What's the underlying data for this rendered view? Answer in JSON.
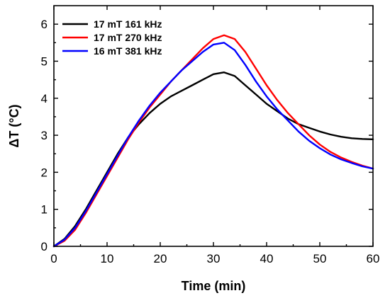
{
  "chart_data": {
    "type": "line",
    "xlabel": "Time (min)",
    "ylabel": "ΔT (°C)",
    "xlim": [
      0,
      60
    ],
    "ylim": [
      0,
      6.5
    ],
    "xticks": [
      0,
      10,
      20,
      30,
      40,
      50,
      60
    ],
    "yticks": [
      0,
      1,
      2,
      3,
      4,
      5,
      6
    ],
    "grid": false,
    "legend_position": "top-left",
    "series": [
      {
        "name": "17 mT 161 kHz",
        "color": "#000000",
        "x": [
          0,
          2,
          4,
          6,
          8,
          10,
          12,
          14,
          16,
          18,
          20,
          22,
          24,
          26,
          28,
          30,
          32,
          34,
          36,
          38,
          40,
          42,
          44,
          46,
          48,
          50,
          52,
          54,
          56,
          58,
          60
        ],
        "y": [
          0,
          0.2,
          0.55,
          1.0,
          1.5,
          2.0,
          2.5,
          2.95,
          3.3,
          3.6,
          3.85,
          4.05,
          4.2,
          4.35,
          4.5,
          4.65,
          4.7,
          4.6,
          4.35,
          4.1,
          3.85,
          3.65,
          3.45,
          3.3,
          3.2,
          3.1,
          3.02,
          2.96,
          2.92,
          2.9,
          2.89
        ]
      },
      {
        "name": "17 mT 270 kHz",
        "color": "#ff0000",
        "x": [
          0,
          2,
          4,
          6,
          8,
          10,
          12,
          14,
          16,
          18,
          20,
          22,
          24,
          26,
          28,
          30,
          32,
          34,
          36,
          38,
          40,
          42,
          44,
          46,
          48,
          50,
          52,
          54,
          56,
          58,
          60
        ],
        "y": [
          0,
          0.15,
          0.45,
          0.9,
          1.4,
          1.9,
          2.4,
          2.9,
          3.35,
          3.75,
          4.1,
          4.45,
          4.75,
          5.05,
          5.35,
          5.6,
          5.7,
          5.6,
          5.25,
          4.8,
          4.35,
          3.95,
          3.6,
          3.3,
          3.0,
          2.75,
          2.55,
          2.4,
          2.28,
          2.18,
          2.1
        ]
      },
      {
        "name": "16 mT 381 kHz",
        "color": "#0000ff",
        "x": [
          0,
          2,
          4,
          6,
          8,
          10,
          12,
          14,
          16,
          18,
          20,
          22,
          24,
          26,
          28,
          30,
          32,
          34,
          36,
          38,
          40,
          42,
          44,
          46,
          48,
          50,
          52,
          54,
          56,
          58,
          60
        ],
        "y": [
          0,
          0.18,
          0.5,
          0.95,
          1.45,
          1.95,
          2.45,
          2.95,
          3.4,
          3.8,
          4.15,
          4.45,
          4.75,
          5.0,
          5.25,
          5.45,
          5.5,
          5.3,
          4.9,
          4.45,
          4.05,
          3.7,
          3.4,
          3.1,
          2.85,
          2.65,
          2.48,
          2.35,
          2.25,
          2.16,
          2.1
        ]
      }
    ]
  }
}
